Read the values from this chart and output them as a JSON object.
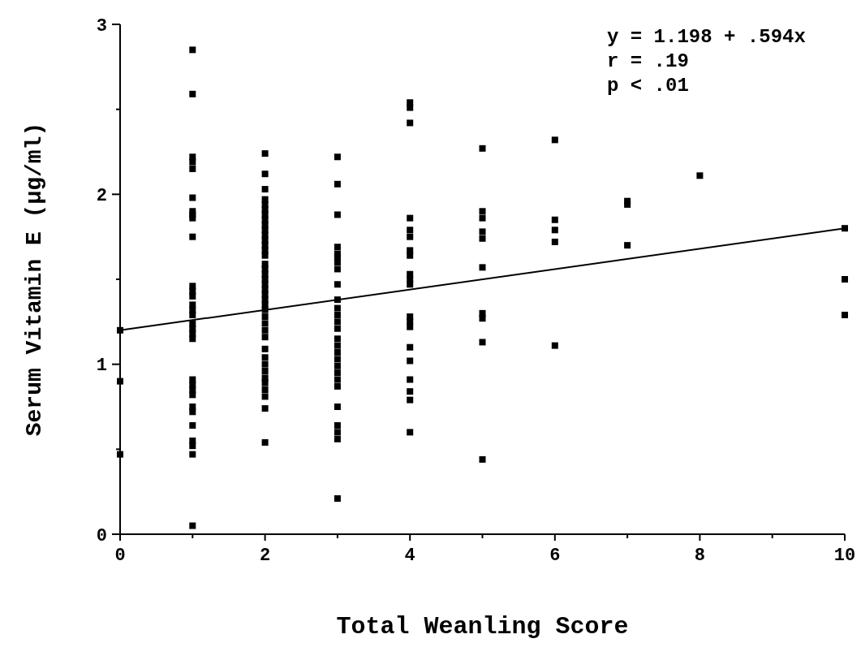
{
  "chart_data": {
    "type": "scatter",
    "xlabel": "Total Weanling Score",
    "ylabel": "Serum Vitamin E (μg/ml)",
    "annotations": [
      "y = 1.198 + .594x",
      "r = .19",
      "p < .01"
    ],
    "xlim": [
      0,
      10
    ],
    "ylim": [
      0,
      3
    ],
    "xticks": [
      0,
      {
        "value": 1,
        "label": null
      },
      2,
      {
        "value": 3,
        "label": null
      },
      4,
      {
        "value": 5,
        "label": null
      },
      6,
      {
        "value": 7,
        "label": null
      },
      8,
      {
        "value": 9,
        "label": null
      },
      10
    ],
    "yticks": [
      0,
      {
        "value": 0.5,
        "label": null
      },
      1,
      {
        "value": 1.5,
        "label": null
      },
      2,
      {
        "value": 2.5,
        "label": null
      },
      3
    ],
    "grid": false,
    "marker": "square",
    "series": [
      {
        "color": "#000000",
        "x": [
          0,
          0,
          0,
          1,
          1,
          1,
          1,
          1,
          1,
          1,
          1,
          1,
          1,
          1,
          1,
          1,
          1,
          1,
          1,
          1,
          1,
          1,
          1,
          1,
          1,
          1,
          1,
          1,
          1,
          1,
          1,
          1,
          1,
          1,
          2,
          2,
          2,
          2,
          2,
          2,
          2,
          2,
          2,
          2,
          2,
          2,
          2,
          2,
          2,
          2,
          2,
          2,
          2,
          2,
          2,
          2,
          2,
          2,
          2,
          2,
          2,
          2,
          2,
          2,
          2,
          2,
          2,
          2,
          2,
          2,
          2,
          2,
          2,
          3,
          3,
          3,
          3,
          3,
          3,
          3,
          3,
          3,
          3,
          3,
          3,
          3,
          3,
          3,
          3,
          3,
          3,
          3,
          3,
          3,
          3,
          3,
          3,
          3,
          3,
          3,
          4,
          4,
          4,
          4,
          4,
          4,
          4,
          4,
          4,
          4,
          4,
          4,
          4,
          4,
          4,
          4,
          4,
          4,
          4,
          4,
          5,
          5,
          5,
          5,
          5,
          5,
          5,
          5,
          5,
          5,
          6,
          6,
          6,
          6,
          6,
          7,
          7,
          7,
          8,
          10,
          10,
          10
        ],
        "values": [
          1.2,
          0.9,
          0.47,
          2.85,
          2.59,
          2.22,
          2.19,
          2.15,
          1.98,
          1.9,
          1.88,
          1.86,
          1.75,
          1.46,
          1.43,
          1.4,
          1.35,
          1.32,
          1.29,
          1.24,
          1.21,
          1.18,
          1.15,
          0.91,
          0.88,
          0.85,
          0.82,
          0.75,
          0.72,
          0.64,
          0.55,
          0.52,
          0.47,
          0.05,
          2.24,
          2.12,
          2.03,
          1.97,
          1.94,
          1.91,
          1.88,
          1.85,
          1.82,
          1.79,
          1.76,
          1.73,
          1.7,
          1.67,
          1.64,
          1.59,
          1.56,
          1.53,
          1.5,
          1.47,
          1.44,
          1.41,
          1.38,
          1.35,
          1.32,
          1.28,
          1.24,
          1.2,
          1.16,
          1.09,
          1.04,
          1.0,
          0.96,
          0.92,
          0.89,
          0.85,
          0.81,
          0.74,
          0.54,
          2.22,
          2.06,
          1.88,
          1.69,
          1.65,
          1.63,
          1.6,
          1.56,
          1.47,
          1.38,
          1.33,
          1.29,
          1.25,
          1.21,
          1.15,
          1.11,
          1.07,
          1.03,
          0.99,
          0.95,
          0.91,
          0.87,
          0.75,
          0.64,
          0.6,
          0.56,
          0.21,
          2.54,
          2.51,
          2.42,
          1.86,
          1.79,
          1.75,
          1.67,
          1.64,
          1.53,
          1.5,
          1.47,
          1.28,
          1.25,
          1.22,
          1.1,
          1.02,
          0.91,
          0.84,
          0.79,
          0.6,
          2.27,
          1.9,
          1.86,
          1.78,
          1.74,
          1.57,
          1.3,
          1.27,
          1.13,
          0.44,
          2.32,
          1.85,
          1.79,
          1.72,
          1.11,
          1.96,
          1.94,
          1.7,
          2.11,
          1.8,
          1.5,
          1.29
        ]
      },
      {
        "type": "line",
        "color": "#000000",
        "marker": "none",
        "line_style": "solid",
        "x": [
          0,
          10
        ],
        "values": [
          1.2,
          1.8
        ]
      }
    ]
  }
}
